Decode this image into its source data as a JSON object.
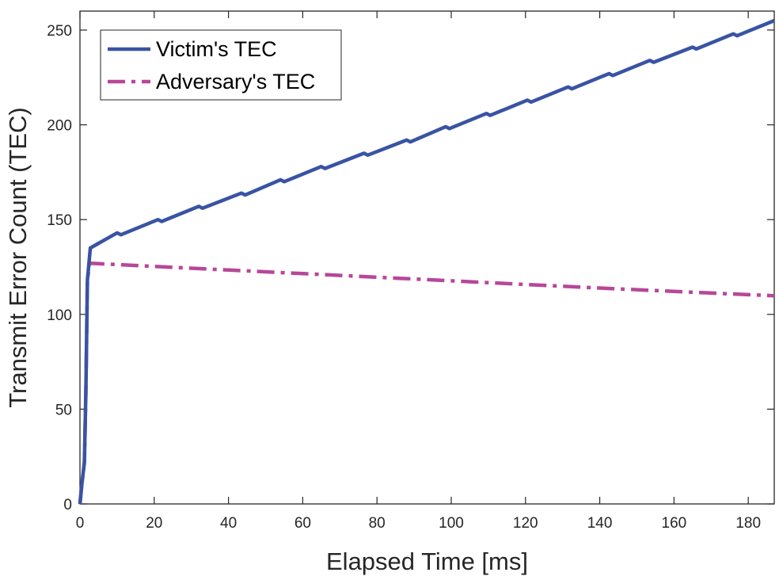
{
  "chart_data": {
    "type": "line",
    "xlabel": "Elapsed Time [ms]",
    "ylabel": "Transmit Error Count (TEC)",
    "xlim": [
      0,
      187
    ],
    "ylim": [
      0,
      260
    ],
    "x_ticks": [
      0,
      20,
      40,
      60,
      80,
      100,
      120,
      140,
      160,
      180
    ],
    "y_ticks": [
      0,
      50,
      100,
      150,
      200,
      250
    ],
    "legend_position": "top-left",
    "grid": false,
    "series": [
      {
        "name": "Victim's TEC",
        "color": "#3953a4",
        "style": "solid",
        "x": [
          0,
          0.5,
          1.2,
          1.6,
          2,
          2.8,
          10,
          11,
          21,
          22,
          32,
          33,
          43.5,
          44.5,
          54,
          55,
          65,
          66,
          76.5,
          77.5,
          88,
          89,
          98.5,
          99.5,
          109.5,
          110.5,
          120.5,
          121.5,
          131.5,
          132.5,
          142.5,
          143.5,
          153.5,
          154.5,
          165,
          166,
          176,
          177,
          187
        ],
        "y": [
          0,
          10,
          22,
          60,
          118,
          135,
          143,
          142,
          150,
          149,
          157,
          156,
          164,
          163,
          171,
          170,
          178,
          177,
          185,
          184,
          192,
          191,
          199,
          198,
          206,
          205,
          213,
          212,
          220,
          219,
          227,
          226,
          234,
          233,
          241,
          240,
          248,
          247,
          255
        ]
      },
      {
        "name": "Adversary's TEC",
        "color": "#b7479a",
        "style": "dashdot",
        "x": [
          0,
          0.5,
          1.2,
          1.6,
          2,
          2.6,
          20,
          40,
          60,
          80,
          100,
          120,
          140,
          160,
          187
        ],
        "y": [
          0,
          10,
          22,
          60,
          118,
          127,
          125.3,
          123.4,
          121.5,
          119.6,
          117.7,
          115.8,
          113.9,
          112.1,
          109.8
        ]
      }
    ]
  }
}
